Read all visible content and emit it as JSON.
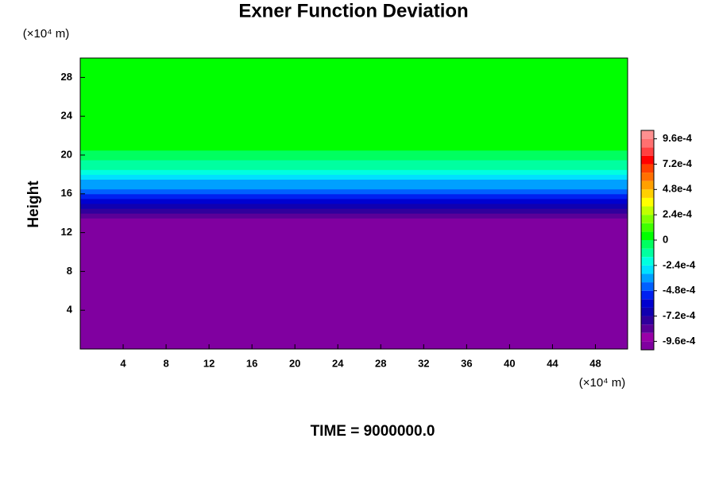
{
  "chart_data": {
    "type": "contour",
    "title": "Exner Function Deviation",
    "y_label": "Height",
    "x_unit": "(×10⁴ m)",
    "y_unit": "(×10⁴ m)",
    "footer": "TIME = 9000000.0",
    "xlim": [
      0,
      51
    ],
    "ylim": [
      0,
      30
    ],
    "xticks": [
      4,
      8,
      12,
      16,
      20,
      24,
      28,
      32,
      36,
      40,
      44,
      48
    ],
    "yticks": [
      4,
      8,
      12,
      16,
      20,
      24,
      28
    ],
    "y": [
      0,
      13.5,
      14,
      14.5,
      15,
      15.5,
      16,
      16.5,
      17,
      17.5,
      18,
      18.5,
      19,
      19.5,
      20,
      20.5
    ],
    "values": [
      -0.00096,
      -0.00086,
      -0.00078,
      -0.0007,
      -0.00062,
      -0.00055,
      -0.00048,
      -0.0004,
      -0.00033,
      -0.00026,
      -0.0002,
      -0.00014,
      -0.0001,
      -6e-05,
      -2e-05,
      0
    ],
    "colorbar": {
      "clim": [
        -0.00104,
        0.00104
      ],
      "colors": [
        "#8000a0",
        "#9900a8",
        "#5a0098",
        "#30009c",
        "#1000b0",
        "#0000d0",
        "#0020f0",
        "#0060ff",
        "#00a0ff",
        "#00e0ff",
        "#00ffe0",
        "#00ffa0",
        "#00ff60",
        "#00ff00",
        "#40ff00",
        "#80ff00",
        "#c0ff00",
        "#ffff00",
        "#ffd000",
        "#ffa000",
        "#ff7000",
        "#ff4000",
        "#ff0000",
        "#ff4040",
        "#ff7070",
        "#ff9090"
      ],
      "ticks": [
        {
          "value": -0.00096,
          "label": "-9.6e-4"
        },
        {
          "value": -0.00072,
          "label": "-7.2e-4"
        },
        {
          "value": -0.00048,
          "label": "-4.8e-4"
        },
        {
          "value": -0.00024,
          "label": "-2.4e-4"
        },
        0,
        {
          "value": 0.00024,
          "label": "2.4e-4"
        },
        {
          "value": 0.00048,
          "label": "4.8e-4"
        },
        {
          "value": 0.00072,
          "label": "7.2e-4"
        },
        {
          "value": 0.00096,
          "label": "9.6e-4"
        }
      ]
    }
  }
}
